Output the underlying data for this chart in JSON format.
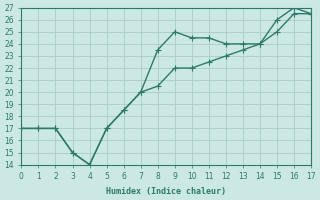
{
  "xlabel": "Humidex (Indice chaleur)",
  "line1_x": [
    0,
    1,
    2,
    3,
    4,
    5,
    6,
    7,
    8,
    9,
    10,
    11,
    12,
    13,
    14,
    15,
    16,
    17
  ],
  "line1_y": [
    17,
    17,
    17,
    15,
    14,
    17,
    18.5,
    20,
    23.5,
    25,
    24.5,
    24.5,
    24,
    24,
    24,
    26,
    27,
    26.5
  ],
  "line2_x": [
    0,
    1,
    2,
    3,
    4,
    5,
    6,
    7,
    8,
    9,
    10,
    11,
    12,
    13,
    14,
    15,
    16,
    17
  ],
  "line2_y": [
    17,
    17,
    17,
    15,
    14,
    17,
    18.5,
    20,
    20.5,
    22,
    22,
    22.5,
    23,
    23.5,
    24,
    25,
    26.5,
    26.5
  ],
  "line_color": "#2d7a6a",
  "bg_color": "#cce8e2",
  "grid_color": "#aaccc6",
  "xlim": [
    0,
    17
  ],
  "ylim": [
    14,
    27
  ],
  "yticks": [
    14,
    15,
    16,
    17,
    18,
    19,
    20,
    21,
    22,
    23,
    24,
    25,
    26,
    27
  ],
  "xticks": [
    0,
    1,
    2,
    3,
    4,
    5,
    6,
    7,
    8,
    9,
    10,
    11,
    12,
    13,
    14,
    15,
    16,
    17
  ],
  "tick_color": "#2d7a6a",
  "spine_color": "#2d7a6a",
  "label_fontsize": 6,
  "tick_fontsize": 5.5,
  "linewidth": 1.0,
  "markersize": 2.5
}
